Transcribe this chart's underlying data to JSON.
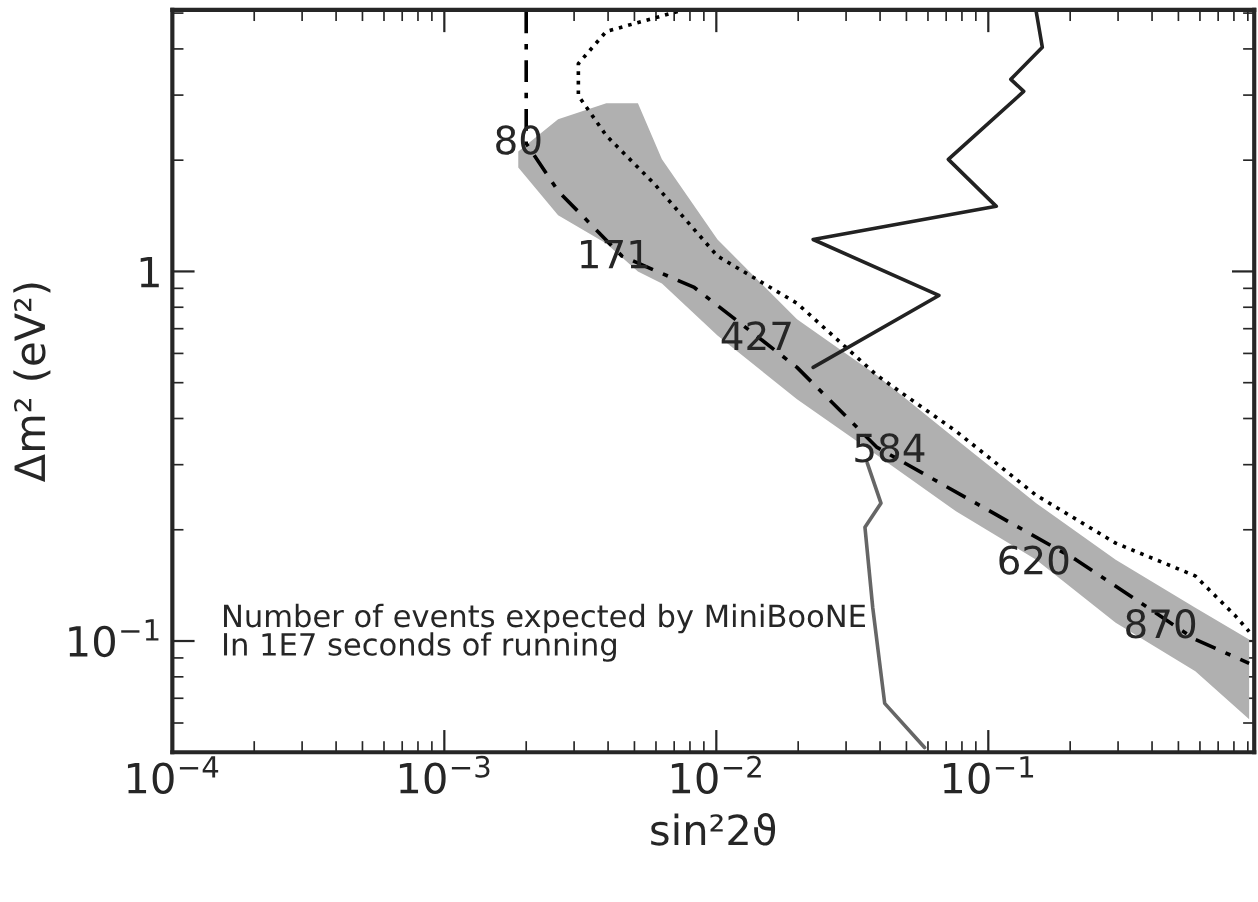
{
  "chart_data": {
    "type": "line",
    "xlabel": "sin²2ϑ",
    "ylabel": "Δm² (eV²)",
    "log": "xy",
    "grid": false,
    "legend": false,
    "xlim": [
      0.0001,
      0.95
    ],
    "ylim": [
      0.05,
      5.1
    ],
    "xticks": [
      {
        "value": 0.0001,
        "label": "10$^{−4}$"
      },
      {
        "value": 0.001,
        "label": "10$^{−3}$"
      },
      {
        "value": 0.01,
        "label": "10$^{−2}$"
      },
      {
        "value": 0.1,
        "label": "10$^{−1}$"
      }
    ],
    "yticks": [
      {
        "value": 0.1,
        "label": "10$^{−1}$"
      },
      1
    ],
    "series": [
      {
        "color": "#b0b0b0",
        "values": [
          null,
          null,
          null,
          null,
          null,
          null,
          null,
          null,
          null,
          null,
          null,
          null,
          null
        ],
        "x": [
          0.00187,
          0.00262,
          0.00394,
          0.00515,
          0.00631,
          0.0101,
          0.0198,
          0.039,
          0.0763,
          0.15,
          0.294,
          0.577,
          0.91
        ],
        "lower": [
          1.91,
          1.42,
          1.19,
          1.0,
          0.928,
          0.671,
          0.451,
          0.318,
          0.224,
          0.166,
          0.112,
          0.0828,
          0.0614
        ],
        "upper": [
          2.11,
          2.58,
          2.85,
          2.85,
          2.01,
          1.22,
          0.742,
          0.523,
          0.351,
          0.236,
          0.166,
          0.123,
          0.101
        ]
      },
      {
        "color": "#000000",
        "line_style": "dashed",
        "x": [
          0.002,
          0.002,
          0.00262,
          0.0045,
          0.0083,
          0.0198,
          0.039,
          0.21,
          0.577,
          0.91
        ],
        "values": [
          5.05,
          2.22,
          1.65,
          1.1,
          0.905,
          0.55,
          0.334,
          0.166,
          0.101,
          0.087
        ]
      },
      {
        "color": "#000000",
        "line_style": "dotted",
        "x": [
          0.00721,
          0.00394,
          0.00311,
          0.00311,
          0.00394,
          0.0059,
          0.0101,
          0.0198,
          0.039,
          0.0763,
          0.15,
          0.294,
          0.577,
          0.81,
          0.91
        ],
        "values": [
          5.05,
          4.46,
          3.65,
          2.99,
          2.33,
          1.73,
          1.1,
          0.82,
          0.523,
          0.369,
          0.248,
          0.184,
          0.15,
          0.117,
          0.106
        ]
      },
      {
        "color": "#222222",
        "line_style": "solid",
        "x": [
          0.15,
          0.158,
          0.121,
          0.135,
          0.0713,
          0.107,
          0.0227,
          0.0658,
          0.0227
        ],
        "values": [
          5.05,
          4.04,
          3.31,
          3.07,
          2.01,
          1.5,
          1.22,
          0.861,
          0.55
        ]
      },
      {
        "color": "#666666",
        "line_style": "solid",
        "x": [
          0.0359,
          0.0403,
          0.0352,
          0.0376,
          0.0416,
          0.0583
        ],
        "values": [
          0.303,
          0.236,
          0.203,
          0.123,
          0.0678,
          0.0515
        ]
      }
    ],
    "annotations": [
      {
        "text": "80",
        "x": 0.00187,
        "y": 2.22
      },
      {
        "text": "171",
        "x": 0.0042,
        "y": 1.09
      },
      {
        "text": "427",
        "x": 0.0141,
        "y": 0.655
      },
      {
        "text": "584",
        "x": 0.0433,
        "y": 0.326
      },
      {
        "text": "620",
        "x": 0.147,
        "y": 0.162
      },
      {
        "text": "870",
        "x": 0.43,
        "y": 0.109
      },
      "Number of events expected by MiniBooNE\nIn 1E7 seconds of running"
    ]
  }
}
